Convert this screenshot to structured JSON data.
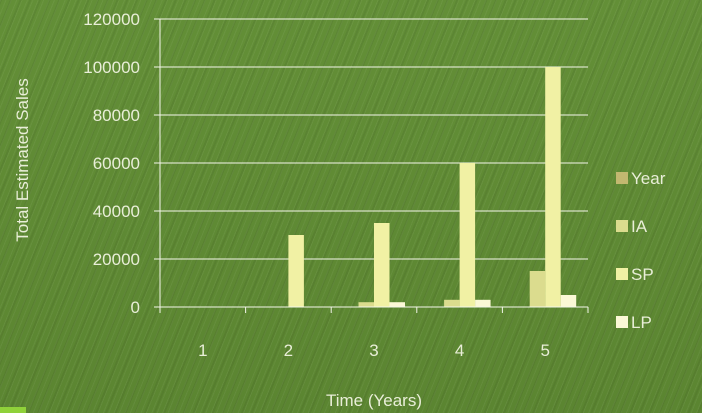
{
  "chart_data": {
    "type": "bar",
    "title": "",
    "xlabel": "Time (Years)",
    "ylabel": "Total Estimated Sales",
    "categories": [
      "1",
      "2",
      "3",
      "4",
      "5"
    ],
    "ylim": [
      0,
      120000
    ],
    "yticks": [
      0,
      20000,
      40000,
      60000,
      80000,
      100000,
      120000
    ],
    "grid": true,
    "legend_position": "right",
    "series": [
      {
        "name": "Year",
        "color": "#c2b870",
        "values": [
          0,
          0,
          0,
          0,
          0
        ]
      },
      {
        "name": "IA",
        "color": "#dbdc8e",
        "values": [
          0,
          0,
          2000,
          3000,
          15000
        ]
      },
      {
        "name": "SP",
        "color": "#f1f1a4",
        "values": [
          0,
          30000,
          35000,
          60000,
          100000
        ]
      },
      {
        "name": "LP",
        "color": "#fbf8d6",
        "values": [
          0,
          0,
          2000,
          3000,
          5000
        ]
      }
    ]
  }
}
